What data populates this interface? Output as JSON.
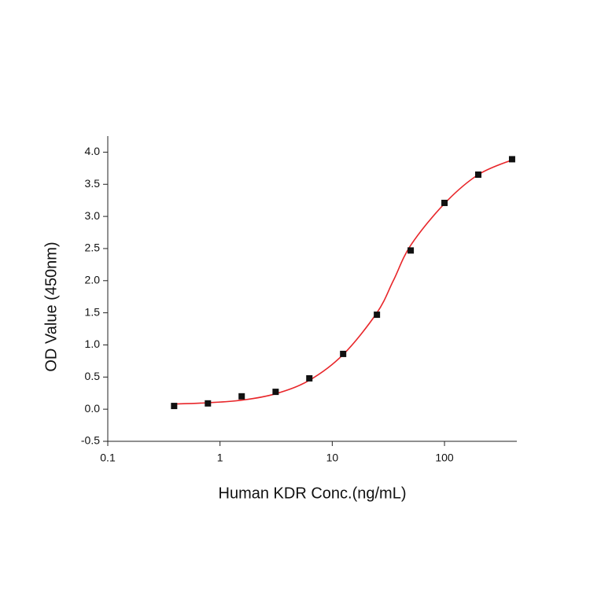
{
  "chart_data": {
    "type": "scatter",
    "xlabel": "Human KDR Conc.(ng/mL)",
    "ylabel": "OD Value (450nm)",
    "xscale": "log",
    "xlim": [
      0.1,
      441
    ],
    "ylim": [
      -0.5,
      4.25
    ],
    "xticks": [
      0.1,
      1,
      10,
      100
    ],
    "yticks": [
      -0.5,
      {
        "value": 0,
        "label": "0.0"
      },
      0.5,
      {
        "value": 1,
        "label": "1.0"
      },
      1.5,
      {
        "value": 2,
        "label": "2.0"
      },
      2.5,
      {
        "value": 3,
        "label": "3.0"
      },
      3.5,
      {
        "value": 4,
        "label": "4.0"
      }
    ],
    "series": [
      {
        "type": "line",
        "color": "#e8262a",
        "x": [
          0.39,
          0.78,
          1.56,
          3.13,
          6.25,
          12.5,
          25,
          35,
          50,
          100,
          200,
          400
        ],
        "values": [
          0.08,
          0.1,
          0.14,
          0.24,
          0.45,
          0.85,
          1.5,
          2.0,
          2.55,
          3.2,
          3.65,
          3.88
        ]
      },
      {
        "type": "scatter",
        "color": "#111111",
        "x": [
          0.39,
          0.78,
          1.56,
          3.13,
          6.25,
          12.5,
          25,
          50,
          100,
          200,
          400
        ],
        "values": [
          0.05,
          0.09,
          0.2,
          0.27,
          0.48,
          0.86,
          1.47,
          2.47,
          3.21,
          3.65,
          3.89
        ]
      }
    ]
  }
}
